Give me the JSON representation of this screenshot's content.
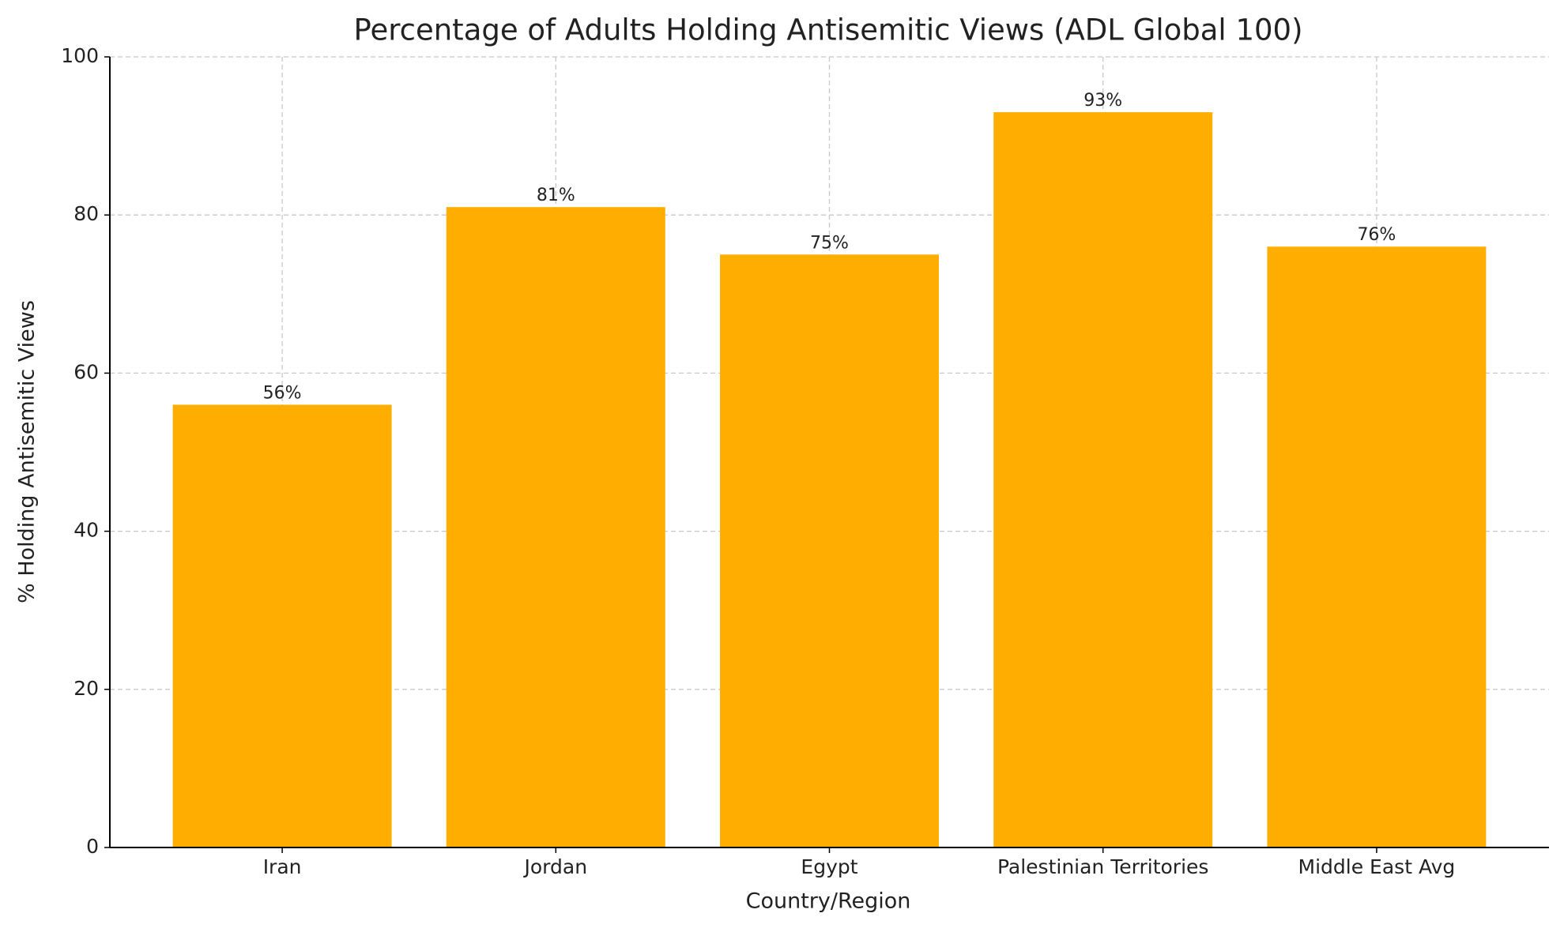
{
  "chart_data": {
    "type": "bar",
    "title": "Percentage of Adults Holding Antisemitic Views (ADL Global 100)",
    "x_label": "Country/Region",
    "y_label": "% Holding Antisemitic Views",
    "categories": [
      "Iran",
      "Jordan",
      "Egypt",
      "Palestinian Territories",
      "Middle East Avg"
    ],
    "values": [
      56,
      81,
      75,
      93,
      76
    ],
    "value_labels": [
      "56%",
      "81%",
      "75%",
      "93%",
      "76%"
    ],
    "color": "#ffae00",
    "ylim": [
      0,
      100
    ],
    "yticks": [
      0,
      20,
      40,
      60,
      80,
      100
    ],
    "grid": true
  }
}
